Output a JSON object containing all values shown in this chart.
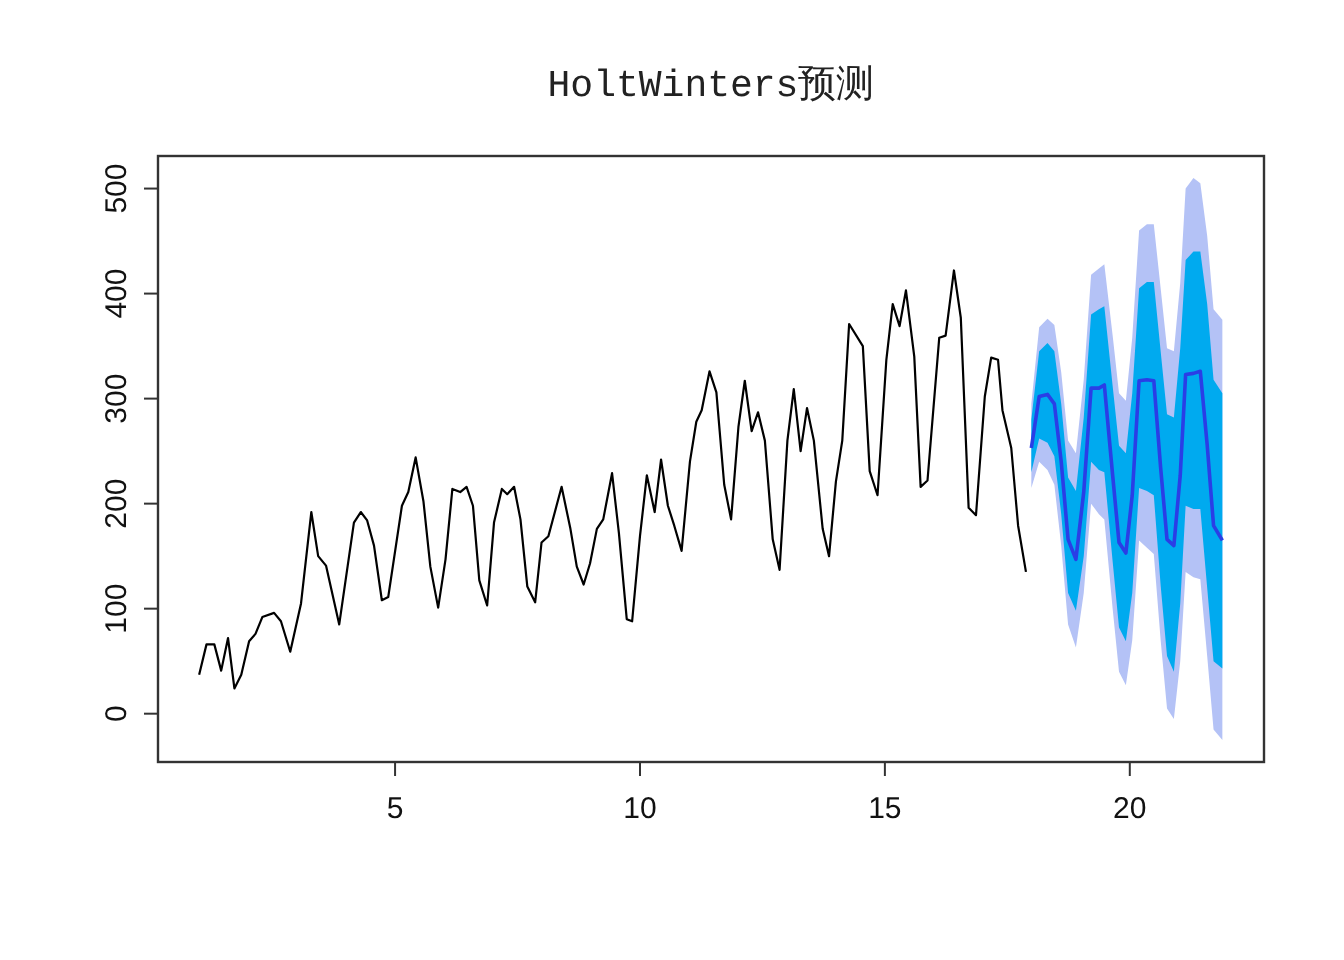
{
  "chart_data": {
    "type": "line",
    "title": "HoltWinters预测",
    "xlim": [
      0.16,
      22.74
    ],
    "ylim": [
      -46,
      531
    ],
    "xticks": [
      5,
      10,
      15,
      20
    ],
    "yticks": [
      0,
      100,
      200,
      300,
      400,
      500
    ],
    "grid": false,
    "marker": "none",
    "line_style": "solid",
    "series": [
      {
        "color": "#000000",
        "x": [
          1.0,
          1.15,
          1.31,
          1.45,
          1.59,
          1.72,
          1.86,
          2.02,
          2.15,
          2.29,
          2.53,
          2.67,
          2.86,
          3.08,
          3.29,
          3.43,
          3.59,
          3.86,
          4.16,
          4.3,
          4.43,
          4.57,
          4.73,
          4.86,
          5.14,
          5.27,
          5.42,
          5.58,
          5.72,
          5.88,
          6.03,
          6.17,
          6.33,
          6.46,
          6.59,
          6.72,
          6.88,
          7.02,
          7.18,
          7.29,
          7.43,
          7.56,
          7.7,
          7.86,
          7.99,
          8.13,
          8.4,
          8.58,
          8.71,
          8.85,
          8.98,
          9.12,
          9.25,
          9.43,
          9.57,
          9.73,
          9.84,
          10.0,
          10.14,
          10.3,
          10.43,
          10.57,
          10.7,
          10.85,
          11.02,
          11.15,
          11.26,
          11.42,
          11.56,
          11.72,
          11.86,
          12.01,
          12.14,
          12.28,
          12.41,
          12.55,
          12.71,
          12.85,
          13.01,
          13.14,
          13.28,
          13.41,
          13.55,
          13.73,
          13.86,
          14.0,
          14.13,
          14.27,
          14.55,
          14.69,
          14.85,
          15.03,
          15.16,
          15.3,
          15.43,
          15.6,
          15.73,
          15.87,
          16.11,
          16.24,
          16.41,
          16.55,
          16.71,
          16.86,
          17.04,
          17.17,
          17.31,
          17.4,
          17.58,
          17.72,
          17.88
        ],
        "values": [
          37,
          66,
          66,
          41,
          72,
          24,
          37,
          69,
          76,
          92,
          96,
          88,
          59,
          105,
          192,
          150,
          141,
          85,
          182,
          192,
          184,
          160,
          108,
          111,
          198,
          211,
          244,
          202,
          140,
          101,
          147,
          214,
          211,
          216,
          198,
          127,
          103,
          182,
          214,
          209,
          216,
          185,
          121,
          106,
          163,
          169,
          216,
          176,
          140,
          123,
          143,
          176,
          185,
          229,
          172,
          90,
          88,
          169,
          227,
          192,
          242,
          198,
          179,
          155,
          240,
          278,
          289,
          326,
          306,
          218,
          185,
          273,
          317,
          269,
          287,
          260,
          166,
          137,
          260,
          309,
          250,
          291,
          260,
          176,
          150,
          221,
          260,
          371,
          350,
          231,
          208,
          337,
          390,
          369,
          403,
          340,
          216,
          222,
          358,
          360,
          422,
          377,
          196,
          189,
          302,
          339,
          337,
          289,
          253,
          179,
          135
        ]
      },
      {
        "color": "#b4c2f6",
        "x": [
          17.99,
          18.15,
          18.32,
          18.46,
          18.6,
          18.74,
          18.9,
          19.06,
          19.21,
          19.37,
          19.48,
          19.65,
          19.78,
          19.92,
          20.05,
          20.19,
          20.35,
          20.49,
          20.63,
          20.76,
          20.9,
          21.03,
          21.14,
          21.3,
          21.44,
          21.58,
          21.71,
          21.89
        ],
        "values": [
          null,
          null,
          null,
          null,
          null,
          null,
          null,
          null,
          null,
          null,
          null,
          null,
          null,
          null,
          null,
          null,
          null,
          null,
          null,
          null,
          null,
          null,
          null,
          null,
          null,
          null,
          null,
          null
        ],
        "lower": [
          215,
          240,
          232,
          218,
          160,
          85,
          63,
          115,
          200,
          190,
          185,
          100,
          40,
          27,
          70,
          165,
          158,
          152,
          70,
          5,
          -5,
          50,
          135,
          130,
          128,
          55,
          -15,
          -25
        ],
        "upper": [
          295,
          368,
          376,
          370,
          325,
          260,
          248,
          318,
          418,
          424,
          428,
          360,
          305,
          298,
          358,
          460,
          466,
          466,
          405,
          348,
          345,
          410,
          500,
          510,
          505,
          455,
          385,
          375
        ]
      },
      {
        "color": "#00aaef",
        "x": [
          17.99,
          18.15,
          18.32,
          18.46,
          18.6,
          18.74,
          18.9,
          19.06,
          19.21,
          19.37,
          19.48,
          19.65,
          19.78,
          19.92,
          20.05,
          20.19,
          20.35,
          20.49,
          20.63,
          20.76,
          20.9,
          21.03,
          21.14,
          21.3,
          21.44,
          21.58,
          21.71,
          21.89
        ],
        "values": [
          null,
          null,
          null,
          null,
          null,
          null,
          null,
          null,
          null,
          null,
          null,
          null,
          null,
          null,
          null,
          null,
          null,
          null,
          null,
          null,
          null,
          null,
          null,
          null,
          null,
          null,
          null,
          null
        ],
        "lower": [
          230,
          262,
          258,
          245,
          190,
          115,
          98,
          150,
          240,
          232,
          230,
          145,
          82,
          69,
          115,
          215,
          212,
          208,
          122,
          55,
          40,
          105,
          198,
          195,
          195,
          120,
          50,
          43
        ],
        "upper": [
          280,
          345,
          353,
          345,
          295,
          225,
          212,
          282,
          380,
          385,
          388,
          312,
          255,
          248,
          305,
          405,
          411,
          411,
          345,
          285,
          282,
          348,
          432,
          440,
          440,
          390,
          318,
          305
        ]
      },
      {
        "color": "#2a3ee6",
        "x": [
          17.99,
          18.15,
          18.32,
          18.46,
          18.6,
          18.74,
          18.9,
          19.06,
          19.21,
          19.37,
          19.48,
          19.65,
          19.78,
          19.92,
          20.05,
          20.19,
          20.35,
          20.49,
          20.63,
          20.76,
          20.9,
          21.03,
          21.14,
          21.3,
          21.44,
          21.58,
          21.71,
          21.89
        ],
        "values": [
          253,
          302,
          304,
          295,
          240,
          166,
          147,
          211,
          310,
          310,
          313,
          227,
          163,
          153,
          208,
          317,
          318,
          317,
          234,
          166,
          160,
          227,
          323,
          324,
          326,
          256,
          179,
          165
        ]
      }
    ]
  }
}
